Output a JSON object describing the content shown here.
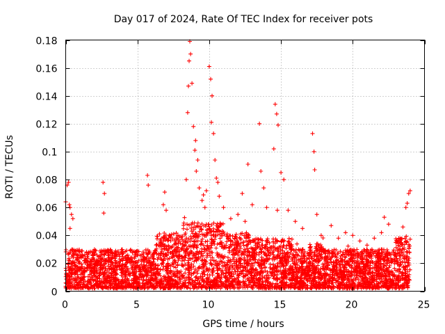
{
  "chart_data": {
    "type": "scatter",
    "title": "Day 017 of 2024, Rate Of TEC Index for receiver pots",
    "xlabel": "GPS time / hours",
    "ylabel": "ROTI / TECUs",
    "xlim": [
      0,
      25
    ],
    "ylim": [
      0,
      0.18
    ],
    "xticks": [
      0,
      5,
      10,
      15,
      20,
      25
    ],
    "yticks": [
      0,
      0.02,
      0.04,
      0.06,
      0.08,
      0.1,
      0.12,
      0.14,
      0.16,
      0.18
    ],
    "xtick_labels": [
      "0",
      "5",
      "10",
      "15",
      "20",
      "25"
    ],
    "ytick_labels": [
      "0",
      "0.02",
      "0.04",
      "0.06",
      "0.08",
      "0.1",
      "0.12",
      "0.14",
      "0.16",
      "0.18"
    ],
    "grid": true,
    "marker": "+",
    "series": [
      {
        "name": "ROTI",
        "color": "#ff0000",
        "note": "dense cloud of ROTI samples from 0 to 24 h; representative points listed",
        "x": [
          0.0,
          0.1,
          0.2,
          0.3,
          0.4,
          0.5,
          0.3,
          0.25,
          2.6,
          2.7,
          2.65,
          5.7,
          5.75,
          6.8,
          6.9,
          7.0,
          8.4,
          8.5,
          8.55,
          8.6,
          8.65,
          8.7,
          8.8,
          8.9,
          9.0,
          9.05,
          9.1,
          9.2,
          9.3,
          9.5,
          9.6,
          9.7,
          9.8,
          10.0,
          10.1,
          10.2,
          10.15,
          10.3,
          10.4,
          10.5,
          10.6,
          10.7,
          11.0,
          11.5,
          12.0,
          12.3,
          12.5,
          12.7,
          13.0,
          13.5,
          13.6,
          13.8,
          14.0,
          14.5,
          14.6,
          14.7,
          14.8,
          14.75,
          15.0,
          15.2,
          15.5,
          16.0,
          16.5,
          17.2,
          17.3,
          17.35,
          17.5,
          17.8,
          18.5,
          19.0,
          19.5,
          20.0,
          20.5,
          21.0,
          21.5,
          22.0,
          22.2,
          22.5,
          23.0,
          23.5,
          23.7,
          23.8,
          23.9,
          24.0
        ],
        "y": [
          0.064,
          0.076,
          0.078,
          0.06,
          0.055,
          0.052,
          0.045,
          0.062,
          0.078,
          0.07,
          0.056,
          0.083,
          0.076,
          0.062,
          0.071,
          0.058,
          0.08,
          0.128,
          0.147,
          0.165,
          0.179,
          0.17,
          0.149,
          0.118,
          0.101,
          0.108,
          0.086,
          0.094,
          0.074,
          0.065,
          0.069,
          0.06,
          0.072,
          0.161,
          0.152,
          0.14,
          0.121,
          0.113,
          0.094,
          0.081,
          0.078,
          0.068,
          0.06,
          0.052,
          0.055,
          0.07,
          0.05,
          0.091,
          0.062,
          0.12,
          0.086,
          0.074,
          0.06,
          0.102,
          0.134,
          0.127,
          0.119,
          0.058,
          0.085,
          0.08,
          0.058,
          0.05,
          0.045,
          0.113,
          0.1,
          0.087,
          0.055,
          0.04,
          0.047,
          0.038,
          0.042,
          0.04,
          0.036,
          0.033,
          0.038,
          0.042,
          0.053,
          0.048,
          0.035,
          0.046,
          0.06,
          0.063,
          0.07,
          0.072
        ]
      }
    ]
  }
}
